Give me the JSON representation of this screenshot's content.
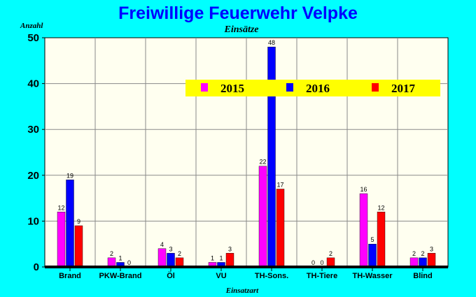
{
  "chart_data": {
    "type": "bar",
    "title": "Freiwillige Feuerwehr Velpke",
    "subtitle": "Einsätze",
    "ylabel": "Anzahl",
    "xlabel": "Einsatzart",
    "categories": [
      "Brand",
      "PKW-Brand",
      "Öl",
      "VU",
      "TH-Sons.",
      "TH-Tiere",
      "TH-Wasser",
      "Blind"
    ],
    "series": [
      {
        "name": "2015",
        "color": "#ff00ff",
        "values": [
          12,
          2,
          4,
          1,
          22,
          0,
          16,
          2
        ]
      },
      {
        "name": "2016",
        "color": "#0000ff",
        "values": [
          19,
          1,
          3,
          1,
          48,
          0,
          5,
          2
        ]
      },
      {
        "name": "2017",
        "color": "#ff0000",
        "values": [
          9,
          0,
          2,
          3,
          17,
          2,
          12,
          3
        ]
      }
    ],
    "data_labels_shown": [
      [
        true,
        true,
        true,
        true,
        true,
        true,
        true,
        true
      ],
      [
        true,
        true,
        true,
        true,
        true,
        true,
        true,
        true
      ],
      [
        true,
        true,
        true,
        true,
        true,
        true,
        true,
        true
      ]
    ],
    "ylim": [
      0,
      50
    ],
    "yticks": [
      0,
      10,
      20,
      30,
      40,
      50
    ],
    "grid": true,
    "legend": "top-right",
    "plot_background": "#fffff0",
    "legend_background": "#ffff00"
  }
}
